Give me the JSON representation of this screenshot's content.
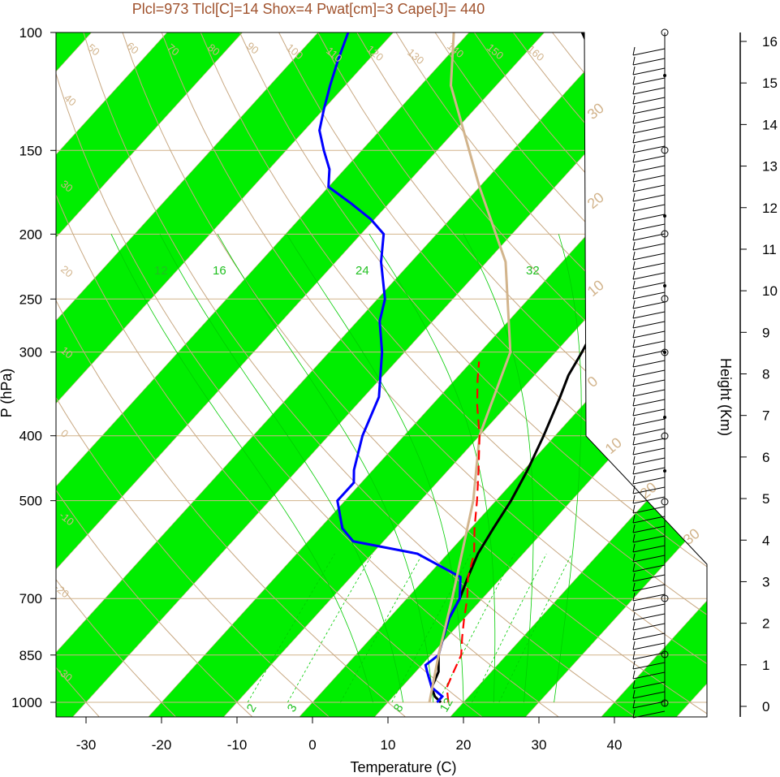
{
  "title": "Plcl=973 Tlcl[C]=14 Shox=4 Pwat[cm]=3 Cape[J]= 440",
  "chart_data": {
    "type": "line",
    "title": "Plcl=973 Tlcl[C]=14 Shox=4 Pwat[cm]=3 Cape[J]= 440",
    "xlabel": "Temperature (C)",
    "ylabel": "P (hPa)",
    "y2label": "Height (Km)",
    "x_ticks": [
      "-30",
      "-20",
      "-10",
      "0",
      "10",
      "20",
      "30",
      "40"
    ],
    "y_ticks": [
      "100",
      "150",
      "200",
      "250",
      "300",
      "400",
      "500",
      "700",
      "850",
      "1000"
    ],
    "height_ticks": [
      "0",
      "1",
      "2",
      "3",
      "4",
      "5",
      "6",
      "7",
      "8",
      "9",
      "10",
      "11",
      "12",
      "13",
      "14",
      "15",
      "16"
    ],
    "xlim": [
      -33,
      47
    ],
    "ylim": [
      1050,
      100
    ],
    "y_scale": "log",
    "temp_band_color": "#00ee00",
    "isotherm_labels": [
      "-30",
      "-20",
      "-10",
      "0",
      "10",
      "20",
      "30"
    ],
    "dry_adiabat_labels": [
      "-30",
      "-20",
      "-10",
      "0",
      "10",
      "20",
      "30",
      "40",
      "50",
      "60",
      "70",
      "80",
      "90",
      "100",
      "110",
      "120",
      "130",
      "140",
      "150",
      "160"
    ],
    "mixing_ratio_labels": [
      "2",
      "3",
      "8",
      "12",
      "16",
      "24",
      "32"
    ],
    "series": [
      {
        "color": "#000000",
        "points": [
          [
            17.0,
            1000
          ],
          [
            15.5,
            980
          ],
          [
            14.0,
            950
          ],
          [
            13.0,
            900
          ],
          [
            11.0,
            850
          ],
          [
            9.5,
            800
          ],
          [
            8.0,
            750
          ],
          [
            7.0,
            700
          ],
          [
            5.5,
            650
          ],
          [
            4.0,
            600
          ],
          [
            3.0,
            550
          ],
          [
            2.0,
            500
          ],
          [
            0.5,
            450
          ],
          [
            -1.5,
            400
          ],
          [
            -4.0,
            350
          ],
          [
            -5.5,
            325
          ],
          [
            -6.5,
            300
          ],
          [
            -7.5,
            280
          ],
          [
            -9.0,
            260
          ],
          [
            -8.5,
            250
          ],
          [
            -7.5,
            235
          ],
          [
            -7.0,
            220
          ],
          [
            -6.0,
            210
          ],
          [
            -6.0,
            200
          ],
          [
            -8.5,
            190
          ],
          [
            -11.5,
            180
          ],
          [
            -15.0,
            170
          ],
          [
            -18.0,
            160
          ],
          [
            -22.0,
            150
          ],
          [
            -28.0,
            140
          ],
          [
            -33.0,
            130
          ],
          [
            -36.0,
            120
          ],
          [
            -40.0,
            110
          ],
          [
            -45.0,
            100
          ]
        ]
      },
      {
        "color": "#0000ff",
        "points": [
          [
            16.5,
            1000
          ],
          [
            16.5,
            980
          ],
          [
            14.0,
            950
          ],
          [
            11.5,
            900
          ],
          [
            10.5,
            880
          ],
          [
            11.0,
            850
          ],
          [
            9.5,
            800
          ],
          [
            8.0,
            750
          ],
          [
            7.0,
            700
          ],
          [
            4.5,
            650
          ],
          [
            -4.0,
            600
          ],
          [
            -14.0,
            575
          ],
          [
            -17.0,
            550
          ],
          [
            -21.0,
            500
          ],
          [
            -21.0,
            470
          ],
          [
            -22.5,
            450
          ],
          [
            -25.5,
            400
          ],
          [
            -28.0,
            350
          ],
          [
            -33.0,
            300
          ],
          [
            -37.0,
            270
          ],
          [
            -39.0,
            250
          ],
          [
            -44.0,
            220
          ],
          [
            -47.0,
            200
          ],
          [
            -50.5,
            190
          ],
          [
            -55.0,
            180
          ],
          [
            -60.0,
            170
          ],
          [
            -62.0,
            160
          ],
          [
            -65.0,
            150
          ],
          [
            -68.0,
            140
          ],
          [
            -70.0,
            130
          ],
          [
            -72.0,
            120
          ],
          [
            -74.0,
            110
          ],
          [
            -76.0,
            100
          ]
        ]
      },
      {
        "color": "#d2b48c",
        "points": [
          [
            15.5,
            1000
          ],
          [
            11.0,
            850
          ],
          [
            6.0,
            700
          ],
          [
            -3.0,
            500
          ],
          [
            -10.0,
            400
          ],
          [
            -16.0,
            300
          ],
          [
            -27.5,
            220
          ],
          [
            -40.0,
            170
          ],
          [
            -56.0,
            120
          ],
          [
            -62.0,
            100
          ]
        ]
      },
      {
        "color": "#ff0000",
        "dashed": true,
        "points": [
          [
            18.0,
            1000
          ],
          [
            16.0,
            950
          ],
          [
            15.0,
            900
          ],
          [
            14.0,
            850
          ],
          [
            12.0,
            800
          ],
          [
            10.0,
            750
          ],
          [
            8.0,
            700
          ],
          [
            5.5,
            650
          ],
          [
            3.5,
            600
          ],
          [
            0.5,
            550
          ],
          [
            -2.5,
            500
          ],
          [
            -6.0,
            450
          ],
          [
            -10.0,
            400
          ],
          [
            -14.0,
            360
          ],
          [
            -17.0,
            330
          ],
          [
            -19.0,
            310
          ]
        ]
      }
    ]
  }
}
